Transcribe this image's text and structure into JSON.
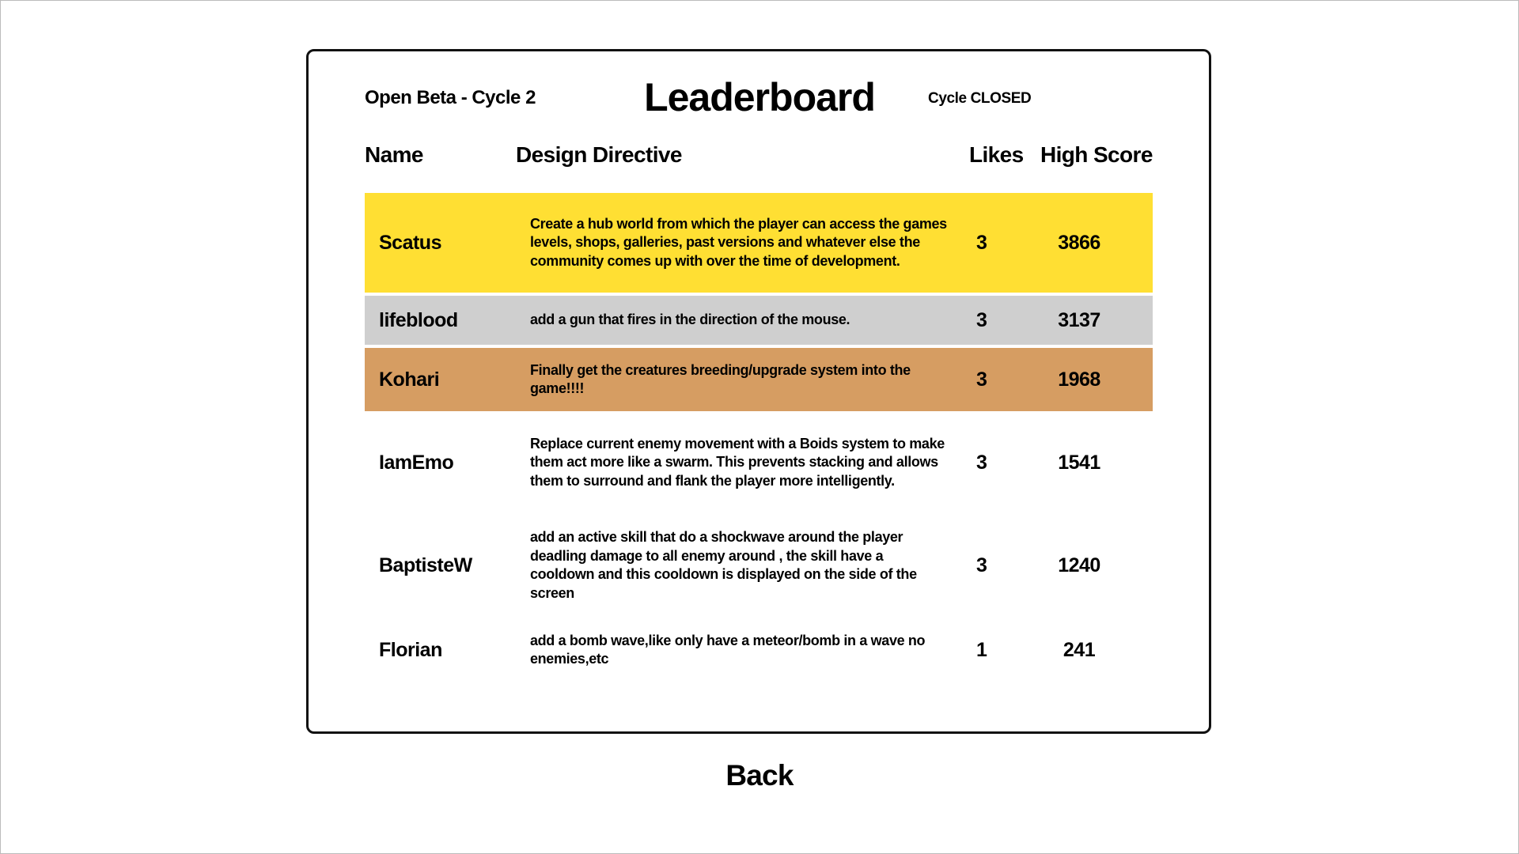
{
  "header": {
    "subtitle": "Open Beta - Cycle 2",
    "title": "Leaderboard",
    "status": "Cycle CLOSED"
  },
  "columns": {
    "name": "Name",
    "directive": "Design Directive",
    "likes": "Likes",
    "score": "High Score"
  },
  "colors": {
    "gold": "#FFDF33",
    "silver": "#CFCFCF",
    "bronze": "#D69D62"
  },
  "rows": [
    {
      "name": "Scatus",
      "directive": "Create a hub world from which the player can access the games levels, shops, galleries, past versions and whatever else the community comes up with over the time of development.",
      "likes": "3",
      "score": "3866",
      "highlight": "gold"
    },
    {
      "name": "lifeblood",
      "directive": "add a gun that fires in the direction of the mouse.",
      "likes": "3",
      "score": "3137",
      "highlight": "silver"
    },
    {
      "name": "Kohari",
      "directive": "Finally get the creatures breeding/upgrade system into the game!!!!",
      "likes": "3",
      "score": "1968",
      "highlight": "bronze"
    },
    {
      "name": "IamEmo",
      "directive": "Replace current enemy movement with a Boids system to make them act more like a swarm. This prevents stacking and allows them to surround and flank the player more intelligently.",
      "likes": "3",
      "score": "1541",
      "highlight": ""
    },
    {
      "name": "BaptisteW",
      "directive": "add an active skill that do a shockwave around the player deadling damage to all enemy around , the skill have a cooldown and this cooldown is displayed on the side of the screen",
      "likes": "3",
      "score": "1240",
      "highlight": ""
    },
    {
      "name": "Florian",
      "directive": "add a bomb wave,like only have a meteor/bomb in a wave no enemies,etc",
      "likes": "1",
      "score": "241",
      "highlight": ""
    }
  ],
  "back_label": "Back"
}
